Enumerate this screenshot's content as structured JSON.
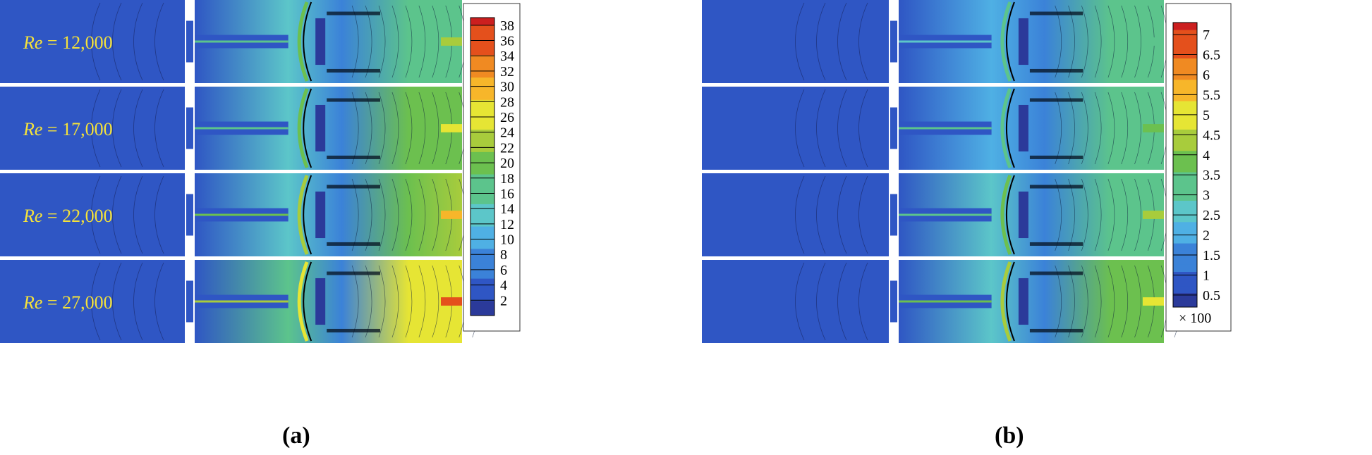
{
  "panels": [
    {
      "id": "a",
      "label": "(a)",
      "rows": [
        {
          "re_prefix": "Re",
          "re_value": "= 12,000",
          "intensity": 0.55
        },
        {
          "re_prefix": "Re",
          "re_value": "= 17,000",
          "intensity": 0.65
        },
        {
          "re_prefix": "Re",
          "re_value": "= 22,000",
          "intensity": 0.78
        },
        {
          "re_prefix": "Re",
          "re_value": "= 27,000",
          "intensity": 0.95
        }
      ],
      "colorbar": {
        "min": 0,
        "max": 39,
        "ticks": [
          "2",
          "4",
          "6",
          "8",
          "10",
          "12",
          "14",
          "16",
          "18",
          "20",
          "22",
          "24",
          "26",
          "28",
          "30",
          "32",
          "34",
          "36",
          "38"
        ],
        "tick_values": [
          2,
          4,
          6,
          8,
          10,
          12,
          14,
          16,
          18,
          20,
          22,
          24,
          26,
          28,
          30,
          32,
          34,
          36,
          38
        ],
        "multiplier": ""
      }
    },
    {
      "id": "b",
      "label": "(b)",
      "rows": [
        {
          "re_prefix": "",
          "re_value": "",
          "intensity": 0.45
        },
        {
          "re_prefix": "",
          "re_value": "",
          "intensity": 0.5
        },
        {
          "re_prefix": "",
          "re_value": "",
          "intensity": 0.55
        },
        {
          "re_prefix": "",
          "re_value": "",
          "intensity": 0.7
        }
      ],
      "colorbar": {
        "min": 0.2,
        "max": 7.3,
        "ticks": [
          "0.5",
          "1",
          "1.5",
          "2",
          "2.5",
          "3",
          "3.5",
          "4",
          "4.5",
          "5",
          "5.5",
          "6",
          "6.5",
          "7"
        ],
        "tick_values": [
          0.5,
          1,
          1.5,
          2,
          2.5,
          3,
          3.5,
          4,
          4.5,
          5,
          5.5,
          6,
          6.5,
          7
        ],
        "multiplier": "× 100"
      }
    }
  ],
  "colormap": [
    "#2b3a9a",
    "#2f56c4",
    "#3b82d8",
    "#4fb0e4",
    "#5cc6c9",
    "#5cc48c",
    "#6cc04f",
    "#a8cc3c",
    "#e6e534",
    "#f7b62a",
    "#f08a22",
    "#e4501c",
    "#cc1f1f"
  ],
  "chart_data": {
    "type": "heatmap",
    "description_series": [
      {
        "panel": "(a)",
        "rows": [
          "Re = 12,000",
          "Re = 17,000",
          "Re = 22,000",
          "Re = 27,000"
        ],
        "colorbar_ticks": [
          2,
          4,
          6,
          8,
          10,
          12,
          14,
          16,
          18,
          20,
          22,
          24,
          26,
          28,
          30,
          32,
          34,
          36,
          38
        ]
      },
      {
        "panel": "(b)",
        "rows": [
          "Re = 12,000",
          "Re = 17,000",
          "Re = 22,000",
          "Re = 27,000"
        ],
        "colorbar_ticks": [
          0.5,
          1,
          1.5,
          2,
          2.5,
          3,
          3.5,
          4,
          4.5,
          5,
          5.5,
          6,
          6.5,
          7
        ],
        "colorbar_multiplier": "× 100"
      }
    ]
  }
}
